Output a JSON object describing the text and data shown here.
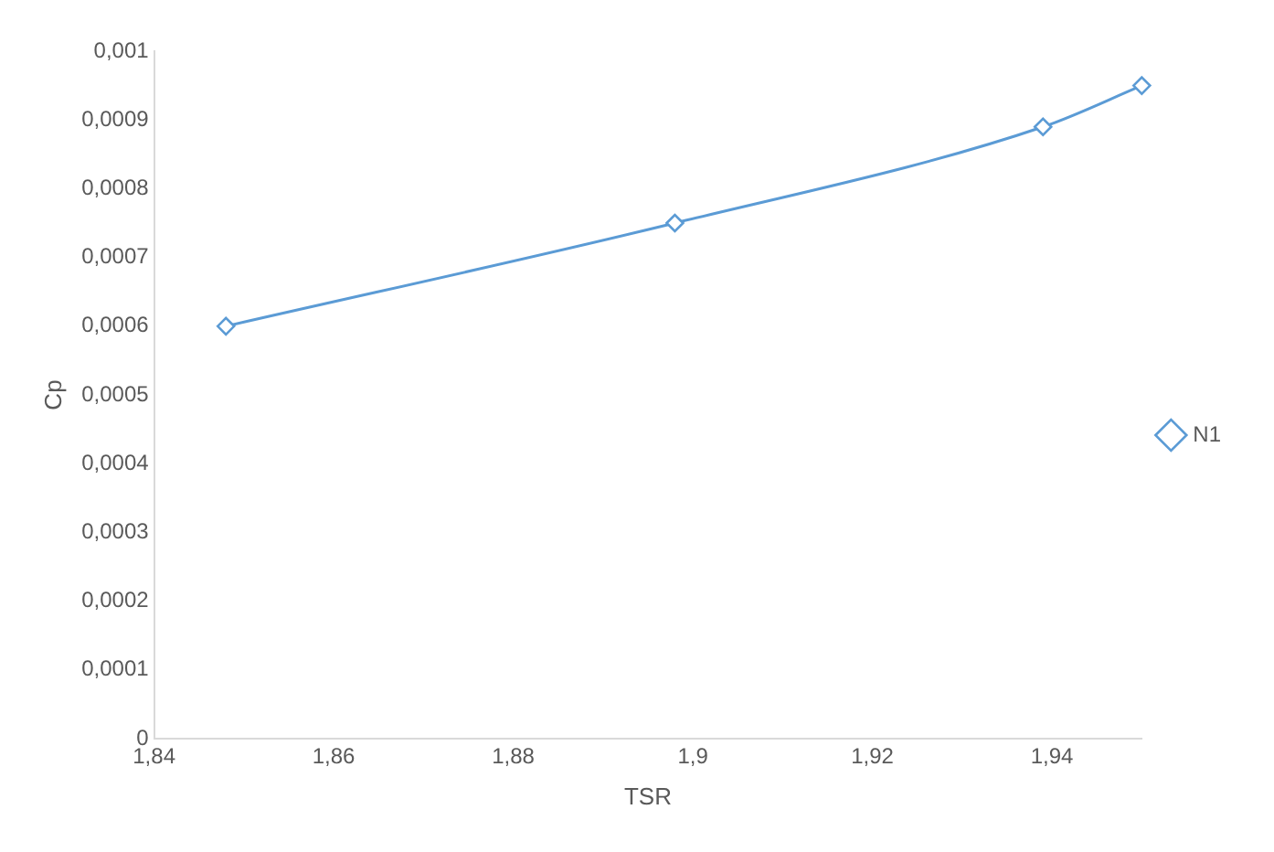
{
  "chart_data": {
    "type": "line",
    "xlabel": "TSR",
    "ylabel": "Cp",
    "x": [
      1.848,
      1.898,
      1.939,
      1.95
    ],
    "series": [
      {
        "name": "N1",
        "color": "#5b9bd5",
        "values": [
          0.0006,
          0.00075,
          0.00089,
          0.00095
        ]
      }
    ],
    "xlim": [
      1.84,
      1.95
    ],
    "xticks": [
      {
        "value": 1.84,
        "label": "1,84"
      },
      {
        "value": 1.86,
        "label": "1,86"
      },
      {
        "value": 1.88,
        "label": "1,88"
      },
      {
        "value": 1.9,
        "label": "1,9"
      },
      {
        "value": 1.92,
        "label": "1,92"
      },
      {
        "value": 1.94,
        "label": "1,94"
      }
    ],
    "ylim": [
      0,
      0.001
    ],
    "yticks": [
      0,
      {
        "value": 0.0001,
        "label": "0,0001"
      },
      {
        "value": 0.0002,
        "label": "0,0002"
      },
      {
        "value": 0.0003,
        "label": "0,0003"
      },
      {
        "value": 0.0004,
        "label": "0,0004"
      },
      {
        "value": 0.0005,
        "label": "0,0005"
      },
      {
        "value": 0.0006,
        "label": "0,0006"
      },
      {
        "value": 0.0007,
        "label": "0,0007"
      },
      {
        "value": 0.0008,
        "label": "0,0008"
      },
      {
        "value": 0.0009,
        "label": "0,0009"
      },
      {
        "value": 0.001,
        "label": "0,001"
      }
    ],
    "grid": false,
    "legend": "right",
    "marker": "diamond",
    "line_style": "solid"
  }
}
